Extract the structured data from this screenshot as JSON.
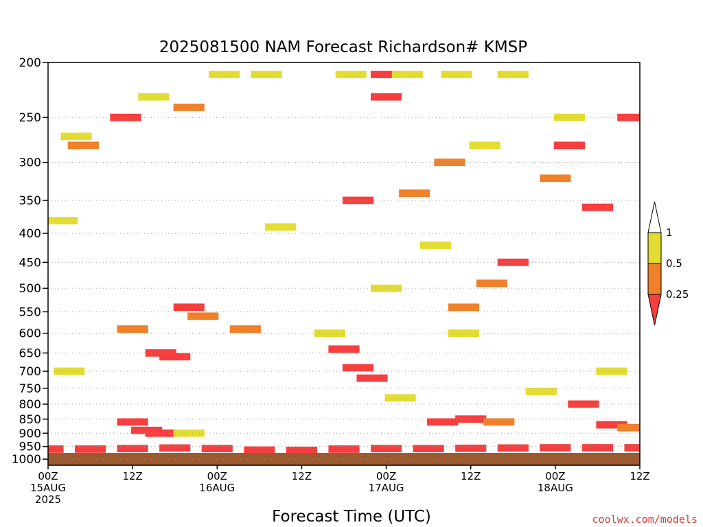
{
  "chart_data": {
    "type": "heatmap",
    "title": "2025081500 NAM Forecast Richardson# KMSP",
    "xlabel": "Forecast Time (UTC)",
    "ylabel": "",
    "x_ticks": [
      {
        "hour": 0,
        "lines": [
          "00Z",
          "15AUG",
          "2025"
        ]
      },
      {
        "hour": 12,
        "lines": [
          "12Z"
        ]
      },
      {
        "hour": 24,
        "lines": [
          "00Z",
          "16AUG"
        ]
      },
      {
        "hour": 36,
        "lines": [
          "12Z"
        ]
      },
      {
        "hour": 48,
        "lines": [
          "00Z",
          "17AUG"
        ]
      },
      {
        "hour": 60,
        "lines": [
          "12Z"
        ]
      },
      {
        "hour": 72,
        "lines": [
          "00Z",
          "18AUG"
        ]
      },
      {
        "hour": 84,
        "lines": [
          "12Z"
        ]
      }
    ],
    "xlim": [
      0,
      84
    ],
    "y_ticks": [
      200,
      250,
      300,
      350,
      400,
      450,
      500,
      550,
      600,
      650,
      700,
      750,
      800,
      850,
      900,
      950,
      1000
    ],
    "ylim": [
      200,
      1025
    ],
    "y_scale": "log-pressure",
    "grid": "dotted horizontal lines at pressure levels",
    "legend": {
      "placement": "right",
      "thresholds": [
        "1",
        "0.5",
        "0.25"
      ],
      "bins": [
        {
          "range": "> 1",
          "color": "#ffffff"
        },
        {
          "range": "0.5 - 1",
          "color": "#e3dc33"
        },
        {
          "range": "0.25 - 0.5",
          "color": "#f08029"
        },
        {
          "range": "< 0.25",
          "color": "#f73e3e"
        }
      ]
    },
    "colors": {
      "low": "#f73e3e",
      "mid": "#f08029",
      "high": "#e3dc33",
      "ground": "#9b5a2f"
    },
    "ground_below_hpa": 975,
    "cells": [
      {
        "t": 0,
        "p": 960,
        "c": 3
      },
      {
        "t": 6,
        "p": 960,
        "c": 3
      },
      {
        "t": 12,
        "p": 958,
        "c": 3
      },
      {
        "t": 18,
        "p": 956,
        "c": 3
      },
      {
        "t": 24,
        "p": 958,
        "c": 3
      },
      {
        "t": 30,
        "p": 964,
        "c": 3
      },
      {
        "t": 36,
        "p": 965,
        "c": 3
      },
      {
        "t": 42,
        "p": 960,
        "c": 3
      },
      {
        "t": 48,
        "p": 958,
        "c": 3
      },
      {
        "t": 54,
        "p": 958,
        "c": 3
      },
      {
        "t": 60,
        "p": 957,
        "c": 3
      },
      {
        "t": 66,
        "p": 956,
        "c": 3
      },
      {
        "t": 72,
        "p": 955,
        "c": 3
      },
      {
        "t": 78,
        "p": 955,
        "c": 3
      },
      {
        "t": 84,
        "p": 955,
        "c": 3
      },
      {
        "t": 14,
        "p": 890,
        "c": 3
      },
      {
        "t": 12,
        "p": 860,
        "c": 3
      },
      {
        "t": 16,
        "p": 900,
        "c": 3
      },
      {
        "t": 60,
        "p": 850,
        "c": 3
      },
      {
        "t": 56,
        "p": 860,
        "c": 3
      },
      {
        "t": 64,
        "p": 860,
        "c": 2
      },
      {
        "t": 76,
        "p": 800,
        "c": 3
      },
      {
        "t": 80,
        "p": 870,
        "c": 3
      },
      {
        "t": 83,
        "p": 880,
        "c": 2
      },
      {
        "t": 16,
        "p": 650,
        "c": 3
      },
      {
        "t": 18,
        "p": 660,
        "c": 3
      },
      {
        "t": 44,
        "p": 690,
        "c": 3
      },
      {
        "t": 42,
        "p": 640,
        "c": 3
      },
      {
        "t": 46,
        "p": 720,
        "c": 3
      },
      {
        "t": 48,
        "p": 210,
        "c": 3
      },
      {
        "t": 48,
        "p": 230,
        "c": 3
      },
      {
        "t": 20,
        "p": 240,
        "c": 2
      },
      {
        "t": 11,
        "p": 250,
        "c": 3
      },
      {
        "t": 5,
        "p": 280,
        "c": 2
      },
      {
        "t": 12,
        "p": 590,
        "c": 2
      },
      {
        "t": 28,
        "p": 590,
        "c": 2
      },
      {
        "t": 20,
        "p": 540,
        "c": 3
      },
      {
        "t": 22,
        "p": 560,
        "c": 2
      },
      {
        "t": 57,
        "p": 300,
        "c": 2
      },
      {
        "t": 72,
        "p": 320,
        "c": 2
      },
      {
        "t": 74,
        "p": 280,
        "c": 3
      },
      {
        "t": 78,
        "p": 360,
        "c": 3
      },
      {
        "t": 83,
        "p": 250,
        "c": 3
      },
      {
        "t": 44,
        "p": 350,
        "c": 3
      },
      {
        "t": 52,
        "p": 340,
        "c": 2
      },
      {
        "t": 63,
        "p": 490,
        "c": 2
      },
      {
        "t": 59,
        "p": 540,
        "c": 2
      },
      {
        "t": 66,
        "p": 450,
        "c": 3
      },
      {
        "t": 4,
        "p": 270,
        "c": 1
      },
      {
        "t": 15,
        "p": 230,
        "c": 1
      },
      {
        "t": 25,
        "p": 210,
        "c": 1
      },
      {
        "t": 31,
        "p": 210,
        "c": 1
      },
      {
        "t": 43,
        "p": 210,
        "c": 1
      },
      {
        "t": 51,
        "p": 210,
        "c": 1
      },
      {
        "t": 58,
        "p": 210,
        "c": 1
      },
      {
        "t": 66,
        "p": 210,
        "c": 1
      },
      {
        "t": 62,
        "p": 280,
        "c": 1
      },
      {
        "t": 74,
        "p": 250,
        "c": 1
      },
      {
        "t": 2,
        "p": 380,
        "c": 1
      },
      {
        "t": 33,
        "p": 390,
        "c": 1
      },
      {
        "t": 55,
        "p": 420,
        "c": 1
      },
      {
        "t": 48,
        "p": 500,
        "c": 1
      },
      {
        "t": 59,
        "p": 600,
        "c": 1
      },
      {
        "t": 40,
        "p": 600,
        "c": 1
      },
      {
        "t": 3,
        "p": 700,
        "c": 1
      },
      {
        "t": 70,
        "p": 760,
        "c": 1
      },
      {
        "t": 80,
        "p": 700,
        "c": 1
      },
      {
        "t": 20,
        "p": 900,
        "c": 1
      },
      {
        "t": 50,
        "p": 780,
        "c": 1
      }
    ]
  },
  "credit": "coolwx.com/models"
}
